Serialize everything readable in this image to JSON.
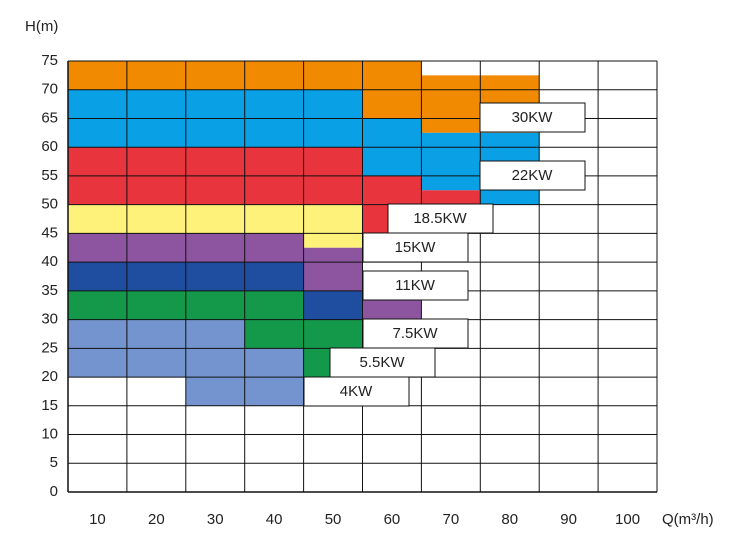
{
  "chart_data": {
    "type": "range-bar",
    "y_label": "H(m)",
    "x_label": "Q(m³/h)",
    "x": [
      10,
      20,
      30,
      40,
      50,
      60,
      70,
      80,
      90,
      100
    ],
    "ylim": [
      0,
      75
    ],
    "yticks": [
      0,
      5,
      10,
      15,
      20,
      25,
      30,
      35,
      40,
      45,
      50,
      55,
      60,
      65,
      70,
      75
    ],
    "grid": true,
    "series": [
      {
        "name": "30KW",
        "color": "#f18a00",
        "low": [
          70,
          70,
          70,
          70,
          70,
          65,
          62.5,
          62.5,
          null,
          null
        ],
        "high": [
          75,
          75,
          75,
          75,
          75,
          75,
          72.5,
          72.5,
          null,
          null
        ]
      },
      {
        "name": "22KW",
        "color": "#0aa0e6",
        "low": [
          60,
          60,
          60,
          60,
          60,
          55,
          52.5,
          50,
          null,
          null
        ],
        "high": [
          70,
          70,
          70,
          70,
          70,
          65,
          62.5,
          62.5,
          null,
          null
        ]
      },
      {
        "name": "18.5KW",
        "color": "#e8343c",
        "low": [
          50,
          50,
          50,
          50,
          50,
          45,
          50,
          null,
          null,
          null
        ],
        "high": [
          60,
          60,
          60,
          60,
          60,
          55,
          52.5,
          null,
          null,
          null
        ]
      },
      {
        "name": "15KW",
        "color": "#fef27a",
        "low": [
          45,
          45,
          45,
          45,
          42.5,
          null,
          null,
          null,
          null,
          null
        ],
        "high": [
          50,
          50,
          50,
          50,
          50,
          null,
          null,
          null,
          null,
          null
        ]
      },
      {
        "name": "11KW",
        "color": "#8d55a0",
        "low": [
          40,
          40,
          40,
          40,
          35,
          30,
          null,
          null,
          null,
          null
        ],
        "high": [
          45,
          45,
          45,
          45,
          42.5,
          35,
          null,
          null,
          null,
          null
        ]
      },
      {
        "name": "7.5KW",
        "color": "#1f4ea1",
        "low": [
          35,
          35,
          35,
          35,
          30,
          null,
          null,
          null,
          null,
          null
        ],
        "high": [
          40,
          40,
          40,
          40,
          35,
          null,
          null,
          null,
          null,
          null
        ]
      },
      {
        "name": "5.5KW",
        "color": "#14994b",
        "low": [
          30,
          30,
          30,
          25,
          20,
          null,
          null,
          null,
          null,
          null
        ],
        "high": [
          35,
          35,
          35,
          35,
          30,
          null,
          null,
          null,
          null,
          null
        ]
      },
      {
        "name": "4KW",
        "color": "#7494cf",
        "low": [
          20,
          20,
          15,
          15,
          null,
          null,
          null,
          null,
          null,
          null
        ],
        "high": [
          30,
          30,
          30,
          25,
          null,
          null,
          null,
          null,
          null,
          null
        ]
      }
    ]
  }
}
